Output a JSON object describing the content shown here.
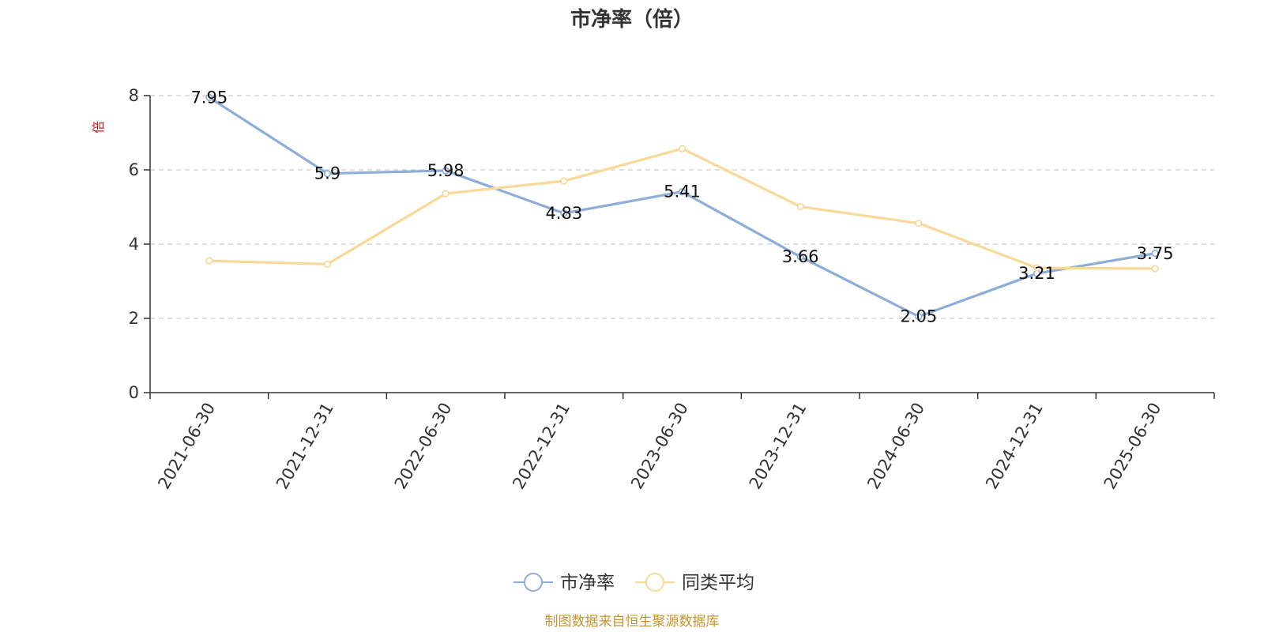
{
  "chart_data": {
    "type": "line",
    "title": "市净率（倍）",
    "unit_label": "倍",
    "categories": [
      "2021-06-30",
      "2021-12-31",
      "2022-06-30",
      "2022-12-31",
      "2023-06-30",
      "2023-12-31",
      "2024-06-30",
      "2024-12-31",
      "2025-06-30"
    ],
    "ylim": [
      0,
      8
    ],
    "yticks": [
      "0",
      "2",
      "4",
      "6",
      "8"
    ],
    "grid": true,
    "legend_position": "bottom-center",
    "series": [
      {
        "name": "市净率",
        "color": "#8eadd8",
        "values": [
          7.95,
          5.9,
          5.98,
          4.83,
          5.41,
          3.66,
          2.05,
          3.21,
          3.75
        ],
        "labels": [
          "7.95",
          "5.9",
          "5.98",
          "4.83",
          "5.41",
          "3.66",
          "2.05",
          "3.21",
          "3.75"
        ],
        "show_labels": true
      },
      {
        "name": "同类平均",
        "color": "#fad898",
        "values": [
          3.55,
          3.46,
          5.36,
          5.7,
          6.57,
          5.01,
          4.56,
          3.36,
          3.34
        ],
        "show_labels": false
      }
    ]
  },
  "source_text": "制图数据来自恒生聚源数据库",
  "colors": {
    "axis": "#333333",
    "grid": "#cccccc",
    "source": "#c8952c",
    "unit": "#e01010"
  }
}
